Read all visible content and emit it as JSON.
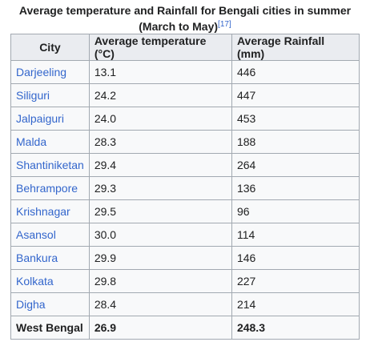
{
  "caption": {
    "text": "Average temperature and Rainfall for Bengali cities in summer (March to May)",
    "reference": "[17]"
  },
  "table": {
    "headers": [
      "City",
      "Average temperature (°C)",
      "Average Rainfall (mm)"
    ],
    "rows": [
      {
        "city": "Darjeeling",
        "temperature": "13.1",
        "rainfall": "446"
      },
      {
        "city": "Siliguri",
        "temperature": "24.2",
        "rainfall": "447"
      },
      {
        "city": "Jalpaiguri",
        "temperature": "24.0",
        "rainfall": "453"
      },
      {
        "city": "Malda",
        "temperature": "28.3",
        "rainfall": "188"
      },
      {
        "city": "Shantiniketan",
        "temperature": "29.4",
        "rainfall": "264"
      },
      {
        "city": "Behrampore",
        "temperature": "29.3",
        "rainfall": "136"
      },
      {
        "city": "Krishnagar",
        "temperature": "29.5",
        "rainfall": "96"
      },
      {
        "city": "Asansol",
        "temperature": "30.0",
        "rainfall": "114"
      },
      {
        "city": "Bankura",
        "temperature": "29.9",
        "rainfall": "146"
      },
      {
        "city": "Kolkata",
        "temperature": "29.8",
        "rainfall": "227"
      },
      {
        "city": "Digha",
        "temperature": "28.4",
        "rainfall": "214"
      }
    ],
    "total": {
      "city": "West Bengal",
      "temperature": "26.9",
      "rainfall": "248.3"
    }
  },
  "colors": {
    "link": "#3366cc",
    "header_bg": "#eaecf0",
    "cell_bg": "#f8f9fa",
    "border": "#a2a9b1"
  }
}
